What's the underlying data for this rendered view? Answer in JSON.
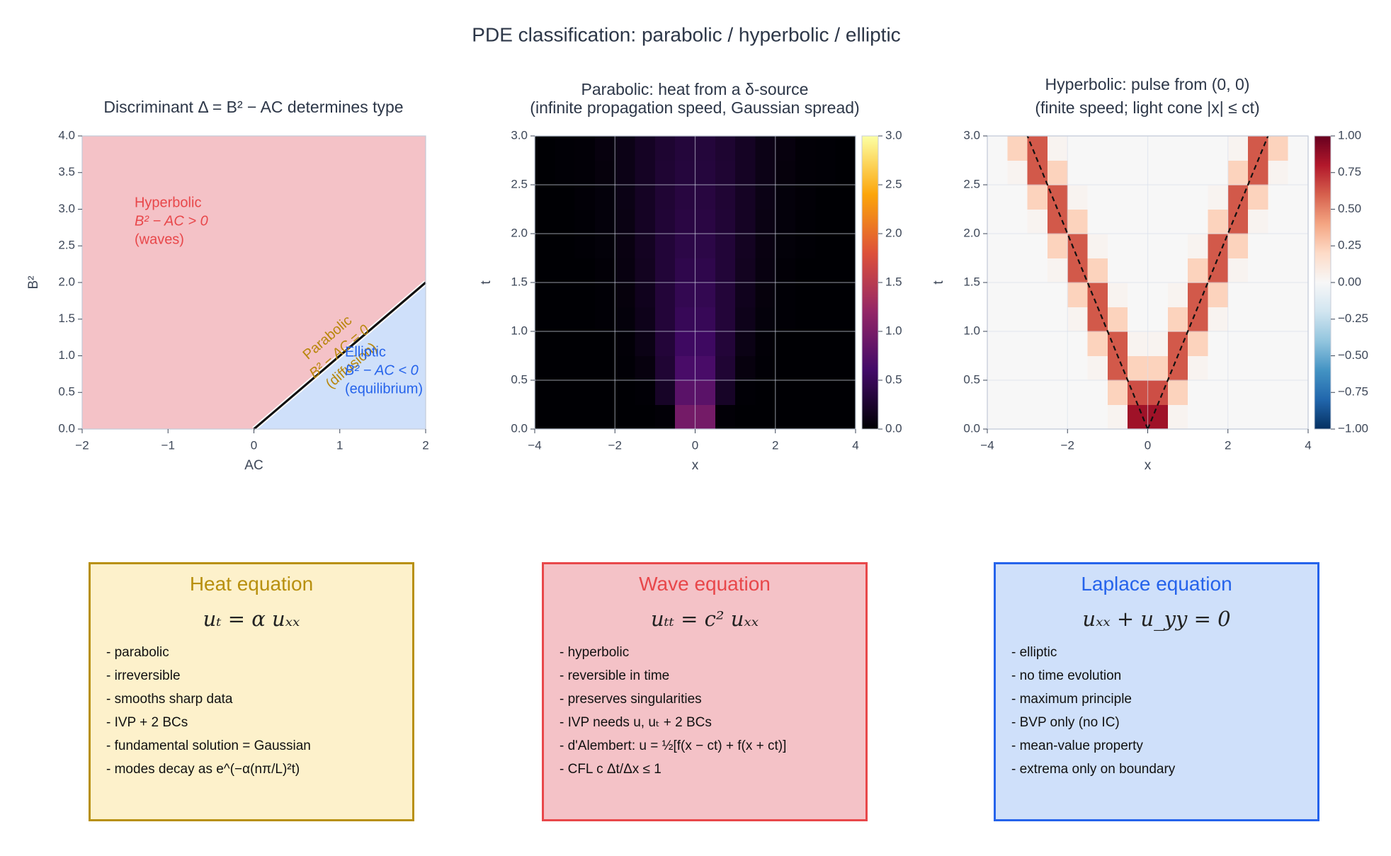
{
  "title": "PDE classification:  parabolic   /   hyperbolic   /   elliptic",
  "chart_data": [
    {
      "type": "regions",
      "title": [
        "Discriminant Δ = B² − AC  determines type"
      ],
      "xlabel": "AC",
      "ylabel": "B²",
      "xlim": [
        -2,
        2
      ],
      "ylim": [
        0,
        4
      ],
      "xticks": [
        {
          "value": -2,
          "label": "−2"
        },
        {
          "value": -1,
          "label": "−1"
        },
        0,
        1,
        2
      ],
      "yticks": [
        {
          "value": 0,
          "label": "0.0"
        },
        {
          "value": 0.5,
          "label": "0.5"
        },
        {
          "value": 1,
          "label": "1.0"
        },
        {
          "value": 1.5,
          "label": "1.5"
        },
        {
          "value": 2,
          "label": "2.0"
        },
        {
          "value": 2.5,
          "label": "2.5"
        },
        {
          "value": 3,
          "label": "3.0"
        },
        {
          "value": 3.5,
          "label": "3.5"
        },
        {
          "value": 4,
          "label": "4.0"
        }
      ],
      "grid": false,
      "regions": [
        {
          "x": [
            -2,
            0,
            2,
            2,
            -2
          ],
          "y": [
            0,
            0,
            2,
            4,
            4
          ],
          "color": "#f4c2c7"
        },
        {
          "x": [
            0,
            2,
            2
          ],
          "y": [
            0,
            0,
            2
          ],
          "color": "#cfe0fa"
        }
      ],
      "boundary": {
        "x": [
          0,
          2
        ],
        "y": [
          0,
          2
        ],
        "color": "#111111"
      },
      "annotations": [
        {
          "lines": [
            "Hyperbolic",
            "B² − AC > 0",
            "(waves)"
          ],
          "color": "#e8474a"
        },
        {
          "lines": [
            "Parabolic",
            "B² − AC = 0",
            "(diffusion)"
          ],
          "color": "#b8860b"
        },
        {
          "lines": [
            "Elliptic",
            "B² − AC < 0",
            "(equilibrium)"
          ],
          "color": "#2563eb"
        }
      ]
    },
    {
      "type": "heatmap",
      "title": [
        "Parabolic:  heat from a δ-source",
        "(infinite propagation speed, Gaussian spread)"
      ],
      "xlabel": "x",
      "ylabel": "t",
      "xlim": [
        -4,
        4
      ],
      "ylim": [
        0,
        3
      ],
      "xticks": [
        {
          "value": -4,
          "label": "−4"
        },
        {
          "value": -2,
          "label": "−2"
        },
        0,
        2,
        4
      ],
      "yticks": [
        {
          "value": 0,
          "label": "0.0"
        },
        {
          "value": 0.5,
          "label": "0.5"
        },
        {
          "value": 1,
          "label": "1.0"
        },
        {
          "value": 1.5,
          "label": "1.5"
        },
        {
          "value": 2,
          "label": "2.0"
        },
        {
          "value": 2.5,
          "label": "2.5"
        },
        {
          "value": 3,
          "label": "3.0"
        }
      ],
      "grid": true,
      "colormap": "inferno",
      "clim": [
        0,
        3
      ],
      "cticks": [
        {
          "value": 0,
          "label": "0.0"
        },
        {
          "value": 0.5,
          "label": "0.5"
        },
        {
          "value": 1,
          "label": "1.0"
        },
        {
          "value": 1.5,
          "label": "1.5"
        },
        {
          "value": 2,
          "label": "2.0"
        },
        {
          "value": 2.5,
          "label": "2.5"
        },
        {
          "value": 3,
          "label": "3.0"
        }
      ],
      "x": [
        -3.75,
        -3.25,
        -2.75,
        -2.25,
        -1.75,
        -1.25,
        -0.75,
        -0.25,
        0.25,
        0.75,
        1.25,
        1.75,
        2.25,
        2.75,
        3.25,
        3.75
      ],
      "y": [
        0.125,
        0.375,
        0.625,
        0.875,
        1.125,
        1.375,
        1.625,
        1.875,
        2.125,
        2.375,
        2.625,
        2.875
      ],
      "z": [
        [
          0,
          0,
          0,
          0,
          0,
          0,
          0.02,
          0.97,
          0.97,
          0.02,
          0,
          0,
          0,
          0,
          0,
          0
        ],
        [
          0,
          0,
          0,
          0,
          0,
          0.01,
          0.21,
          0.78,
          0.78,
          0.21,
          0.01,
          0,
          0,
          0,
          0,
          0
        ],
        [
          0,
          0,
          0,
          0,
          0.01,
          0.06,
          0.29,
          0.65,
          0.65,
          0.29,
          0.06,
          0.01,
          0,
          0,
          0,
          0
        ],
        [
          0,
          0,
          0,
          0,
          0.02,
          0.1,
          0.32,
          0.56,
          0.56,
          0.32,
          0.1,
          0.02,
          0,
          0,
          0,
          0
        ],
        [
          0,
          0,
          0,
          0.01,
          0.04,
          0.13,
          0.32,
          0.5,
          0.5,
          0.32,
          0.13,
          0.04,
          0.01,
          0,
          0,
          0
        ],
        [
          0,
          0,
          0,
          0.01,
          0.05,
          0.15,
          0.32,
          0.46,
          0.46,
          0.32,
          0.15,
          0.05,
          0.01,
          0,
          0,
          0
        ],
        [
          0,
          0,
          0,
          0.02,
          0.07,
          0.17,
          0.31,
          0.43,
          0.43,
          0.31,
          0.17,
          0.07,
          0.02,
          0,
          0,
          0
        ],
        [
          0,
          0,
          0.01,
          0.03,
          0.08,
          0.18,
          0.31,
          0.4,
          0.4,
          0.31,
          0.18,
          0.08,
          0.03,
          0.01,
          0,
          0
        ],
        [
          0,
          0,
          0.01,
          0.04,
          0.09,
          0.19,
          0.3,
          0.38,
          0.38,
          0.3,
          0.19,
          0.09,
          0.04,
          0.01,
          0,
          0
        ],
        [
          0,
          0,
          0.02,
          0.04,
          0.1,
          0.19,
          0.29,
          0.36,
          0.36,
          0.29,
          0.19,
          0.1,
          0.04,
          0.02,
          0,
          0
        ],
        [
          0,
          0.01,
          0.02,
          0.05,
          0.11,
          0.19,
          0.28,
          0.34,
          0.34,
          0.28,
          0.19,
          0.11,
          0.05,
          0.02,
          0.01,
          0
        ],
        [
          0,
          0.01,
          0.02,
          0.06,
          0.11,
          0.19,
          0.27,
          0.33,
          0.33,
          0.27,
          0.19,
          0.11,
          0.06,
          0.02,
          0.01,
          0
        ]
      ]
    },
    {
      "type": "heatmap",
      "title": [
        "Hyperbolic:  pulse from (0, 0)",
        "(finite speed; light cone |x| ≤ ct)"
      ],
      "xlabel": "x",
      "ylabel": "t",
      "xlim": [
        -4,
        4
      ],
      "ylim": [
        0,
        3
      ],
      "xticks": [
        {
          "value": -4,
          "label": "−4"
        },
        {
          "value": -2,
          "label": "−2"
        },
        0,
        2,
        4
      ],
      "yticks": [
        {
          "value": 0,
          "label": "0.0"
        },
        {
          "value": 0.5,
          "label": "0.5"
        },
        {
          "value": 1,
          "label": "1.0"
        },
        {
          "value": 1.5,
          "label": "1.5"
        },
        {
          "value": 2,
          "label": "2.0"
        },
        {
          "value": 2.5,
          "label": "2.5"
        },
        {
          "value": 3,
          "label": "3.0"
        }
      ],
      "grid": true,
      "colormap": "RdBu_r",
      "clim": [
        -1,
        1
      ],
      "cticks": [
        {
          "value": -1,
          "label": "−1.00"
        },
        {
          "value": -0.75,
          "label": "−0.75"
        },
        {
          "value": -0.5,
          "label": "−0.50"
        },
        {
          "value": -0.25,
          "label": "−0.25"
        },
        {
          "value": 0,
          "label": "0.00"
        },
        {
          "value": 0.25,
          "label": "0.25"
        },
        {
          "value": 0.5,
          "label": "0.50"
        },
        {
          "value": 0.75,
          "label": "0.75"
        },
        {
          "value": 1,
          "label": "1.00"
        }
      ],
      "x": [
        -3.75,
        -3.25,
        -2.75,
        -2.25,
        -1.75,
        -1.25,
        -0.75,
        -0.25,
        0.25,
        0.75,
        1.25,
        1.75,
        2.25,
        2.75,
        3.25,
        3.75
      ],
      "y": [
        0.125,
        0.375,
        0.625,
        0.875,
        1.125,
        1.375,
        1.625,
        1.875,
        2.125,
        2.375,
        2.625,
        2.875
      ],
      "z": [
        [
          0,
          0,
          0,
          0,
          0,
          0,
          0.03,
          0.85,
          0.85,
          0.03,
          0,
          0,
          0,
          0,
          0,
          0
        ],
        [
          0,
          0,
          0,
          0,
          0,
          0,
          0.23,
          0.65,
          0.65,
          0.23,
          0,
          0,
          0,
          0,
          0,
          0
        ],
        [
          0,
          0,
          0,
          0,
          0,
          0.03,
          0.62,
          0.23,
          0.23,
          0.62,
          0.03,
          0,
          0,
          0,
          0,
          0
        ],
        [
          0,
          0,
          0,
          0,
          0,
          0.23,
          0.62,
          0.03,
          0.03,
          0.62,
          0.23,
          0,
          0,
          0,
          0,
          0
        ],
        [
          0,
          0,
          0,
          0,
          0.03,
          0.62,
          0.23,
          0,
          0,
          0.23,
          0.62,
          0.03,
          0,
          0,
          0,
          0
        ],
        [
          0,
          0,
          0,
          0,
          0.23,
          0.62,
          0.03,
          0,
          0,
          0.03,
          0.62,
          0.23,
          0,
          0,
          0,
          0
        ],
        [
          0,
          0,
          0,
          0.03,
          0.62,
          0.23,
          0,
          0,
          0,
          0,
          0.23,
          0.62,
          0.03,
          0,
          0,
          0
        ],
        [
          0,
          0,
          0,
          0.23,
          0.62,
          0.03,
          0,
          0,
          0,
          0,
          0.03,
          0.62,
          0.23,
          0,
          0,
          0
        ],
        [
          0,
          0,
          0.03,
          0.62,
          0.23,
          0,
          0,
          0,
          0,
          0,
          0,
          0.23,
          0.62,
          0.03,
          0,
          0
        ],
        [
          0,
          0,
          0.23,
          0.62,
          0.03,
          0,
          0,
          0,
          0,
          0,
          0,
          0.03,
          0.62,
          0.23,
          0,
          0
        ],
        [
          0,
          0.03,
          0.62,
          0.23,
          0,
          0,
          0,
          0,
          0,
          0,
          0,
          0,
          0.23,
          0.62,
          0.03,
          0
        ],
        [
          0,
          0.23,
          0.62,
          0.03,
          0,
          0,
          0,
          0,
          0,
          0,
          0,
          0,
          0.03,
          0.62,
          0.23,
          0
        ]
      ],
      "cone": [
        {
          "x": [
            0,
            -3
          ],
          "y": [
            0,
            3
          ]
        },
        {
          "x": [
            0,
            3
          ],
          "y": [
            0,
            3
          ]
        }
      ]
    }
  ],
  "cards": [
    {
      "title": "Heat equation",
      "equation": "uₜ = α uₓₓ",
      "color": "#b8900f",
      "fill": "#fdf1cb",
      "bullets": [
        "- parabolic",
        "- irreversible",
        "- smooths sharp data",
        "- IVP + 2 BCs",
        "- fundamental solution = Gaussian",
        "- modes decay as e^(−α(nπ/L)²t)"
      ]
    },
    {
      "title": "Wave equation",
      "equation": "uₜₜ = c² uₓₓ",
      "color": "#e8474a",
      "fill": "#f4c2c7",
      "bullets": [
        "- hyperbolic",
        "- reversible in time",
        "- preserves singularities",
        "- IVP needs u, uₜ + 2 BCs",
        "- d'Alembert: u = ½[f(x − ct) + f(x + ct)]",
        "- CFL  c Δt/Δx ≤ 1"
      ]
    },
    {
      "title": "Laplace equation",
      "equation": "uₓₓ + u_yy = 0",
      "color": "#2563eb",
      "fill": "#cfe0fa",
      "bullets": [
        "- elliptic",
        "- no time evolution",
        "- maximum principle",
        "- BVP only (no IC)",
        "- mean-value property",
        "- extrema only on boundary"
      ]
    }
  ]
}
